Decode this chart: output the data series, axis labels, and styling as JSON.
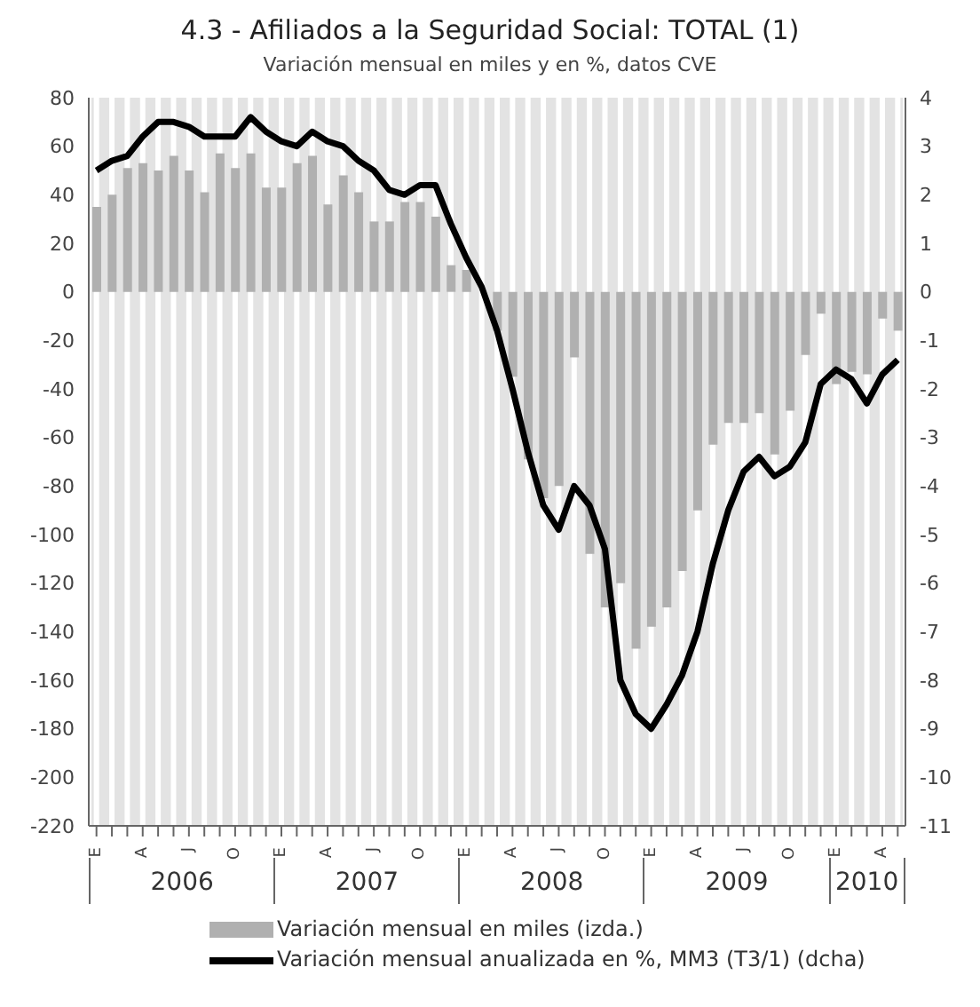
{
  "chart_data": {
    "type": "bar",
    "title": "4.3 - Afiliados a la Seguridad Social: TOTAL (1)",
    "subtitle": "Variación mensual en miles y en %, datos CVE",
    "categories": [
      "E",
      null,
      null,
      "A",
      null,
      null,
      "J",
      null,
      null,
      "O",
      null,
      null,
      "E",
      null,
      null,
      "A",
      null,
      null,
      "J",
      null,
      null,
      "O",
      null,
      null,
      "E",
      null,
      null,
      "A",
      null,
      null,
      "J",
      null,
      null,
      "O",
      null,
      null,
      "E",
      null,
      null,
      "A",
      null,
      null,
      "J",
      null,
      null,
      "O",
      null,
      null,
      "E",
      null,
      null,
      "A",
      null
    ],
    "series": [
      {
        "name": "Variación mensual en miles (izda.)",
        "color": "#b0b0b0",
        "values": [
          35,
          40,
          51,
          53,
          50,
          56,
          50,
          41,
          57,
          51,
          57,
          43,
          43,
          53,
          56,
          36,
          48,
          41,
          29,
          29,
          37,
          37,
          31,
          11,
          9,
          0,
          -16,
          -35,
          -69,
          -85,
          -80,
          -27,
          -108,
          -130,
          -120,
          -147,
          -138,
          -130,
          -115,
          -90,
          -63,
          -54,
          -54,
          -50,
          -67,
          -49,
          -26,
          -9,
          -38,
          -33,
          -34,
          -11,
          -16
        ]
      },
      {
        "name": "Variación mensual anualizada en %, MM3 (T3/1)  (dcha)",
        "type": "line",
        "axis": "y2",
        "color": "#000000",
        "values": [
          2.5,
          2.7,
          2.8,
          3.2,
          3.5,
          3.5,
          3.4,
          3.2,
          3.2,
          3.2,
          3.6,
          3.3,
          3.1,
          3.0,
          3.3,
          3.1,
          3.0,
          2.7,
          2.5,
          2.1,
          2.0,
          2.2,
          2.2,
          1.4,
          0.7,
          0.1,
          -0.8,
          -2.0,
          -3.3,
          -4.4,
          -4.9,
          -4.0,
          -4.4,
          -5.3,
          -8.0,
          -8.7,
          -9.0,
          -8.5,
          -7.9,
          -7.0,
          -5.6,
          -4.5,
          -3.7,
          -3.4,
          -3.8,
          -3.6,
          -3.1,
          -1.9,
          -1.6,
          -1.8,
          -2.3,
          -1.7,
          -1.4
        ]
      }
    ],
    "ylim": [
      -220,
      80
    ],
    "yticks": [
      -220,
      -200,
      -180,
      -160,
      -140,
      -120,
      -100,
      -80,
      -60,
      -40,
      -20,
      0,
      20,
      40,
      60,
      80
    ],
    "y2lim": [
      -11,
      4
    ],
    "y2ticks": [
      -11,
      -10,
      -9,
      -8,
      -7,
      -6,
      -5,
      -4,
      -3,
      -2,
      -1,
      0,
      1,
      2,
      3,
      4
    ],
    "annotations": [
      "2006",
      "2007",
      "2008",
      "2009",
      "2010"
    ],
    "grid": "x",
    "marker": "none",
    "line_style": "solid",
    "legend": "bottom"
  }
}
